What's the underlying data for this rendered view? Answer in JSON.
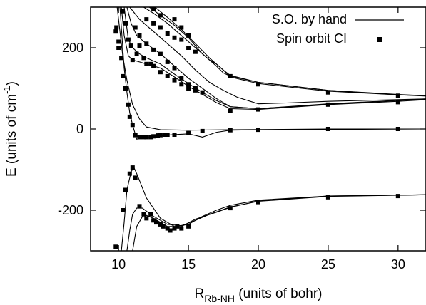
{
  "chart_data": {
    "type": "line",
    "title": "",
    "xlabel": {
      "prefix": "R",
      "subscript": "Rb-NH",
      "suffix": " (units of bohr)"
    },
    "ylabel": {
      "prefix": "E (units of cm",
      "superscript": "-1",
      "suffix": ")"
    },
    "xlim": [
      8,
      32
    ],
    "ylim": [
      -300,
      300
    ],
    "xticks": [
      "10",
      "15",
      "20",
      "25",
      "30"
    ],
    "yticks": [
      "-200",
      "0",
      "200"
    ],
    "xtick_values": [
      10,
      15,
      20,
      25,
      30
    ],
    "ytick_values": [
      -200,
      0,
      200
    ],
    "grid": false,
    "legend": {
      "placement": "top-right",
      "entries": [
        {
          "label": "S.O. by hand",
          "style": "line"
        },
        {
          "label": "Spin orbit CI",
          "style": "square-marker"
        }
      ]
    },
    "line_curves": [
      [
        [
          9.9,
          300
        ],
        [
          10.1,
          240
        ],
        [
          10.3,
          180
        ],
        [
          10.6,
          120
        ],
        [
          11,
          60
        ],
        [
          11.5,
          25
        ],
        [
          12,
          5
        ],
        [
          13,
          -2
        ],
        [
          15,
          -3
        ],
        [
          18,
          -2
        ],
        [
          25,
          0
        ],
        [
          32,
          0
        ]
      ],
      [
        [
          10.1,
          300
        ],
        [
          10.4,
          150
        ],
        [
          10.6,
          90
        ],
        [
          10.8,
          40
        ],
        [
          11,
          10
        ],
        [
          11.3,
          -25
        ],
        [
          11.8,
          -22
        ],
        [
          12.5,
          -20
        ],
        [
          13.5,
          -15
        ],
        [
          15,
          -12
        ],
        [
          16,
          -20
        ],
        [
          17,
          -8
        ],
        [
          18,
          -3
        ],
        [
          20,
          -2
        ],
        [
          32,
          0
        ]
      ],
      [
        [
          10.2,
          300
        ],
        [
          10.4,
          230
        ],
        [
          10.7,
          180
        ],
        [
          11,
          170
        ],
        [
          11.5,
          165
        ],
        [
          12,
          160
        ],
        [
          13,
          150
        ],
        [
          14,
          128
        ],
        [
          15,
          105
        ],
        [
          16,
          85
        ],
        [
          17,
          65
        ],
        [
          18,
          50
        ],
        [
          20,
          48
        ],
        [
          25,
          60
        ],
        [
          30,
          68
        ],
        [
          32,
          72
        ]
      ],
      [
        [
          10.4,
          300
        ],
        [
          10.7,
          220
        ],
        [
          11,
          200
        ],
        [
          11.5,
          185
        ],
        [
          12,
          175
        ],
        [
          13,
          160
        ],
        [
          14,
          135
        ],
        [
          15,
          112
        ],
        [
          16,
          90
        ],
        [
          17,
          70
        ],
        [
          18,
          55
        ],
        [
          20,
          50
        ],
        [
          25,
          61
        ],
        [
          30,
          70
        ],
        [
          32,
          73
        ]
      ],
      [
        [
          10.6,
          300
        ],
        [
          10.9,
          260
        ],
        [
          11.3,
          230
        ],
        [
          12,
          210
        ],
        [
          13,
          185
        ],
        [
          14,
          155
        ],
        [
          15,
          125
        ],
        [
          16,
          100
        ],
        [
          17,
          75
        ],
        [
          18,
          55
        ],
        [
          20,
          50
        ],
        [
          25,
          62
        ],
        [
          32,
          74
        ]
      ],
      [
        [
          10.8,
          300
        ],
        [
          11.5,
          270
        ],
        [
          12.5,
          240
        ],
        [
          13.5,
          210
        ],
        [
          14.5,
          180
        ],
        [
          15.5,
          145
        ],
        [
          16.5,
          115
        ],
        [
          17.5,
          95
        ],
        [
          18.5,
          78
        ],
        [
          20,
          62
        ],
        [
          22,
          64
        ],
        [
          25,
          68
        ],
        [
          32,
          74
        ]
      ],
      [
        [
          11.8,
          300
        ],
        [
          12.5,
          285
        ],
        [
          13.5,
          260
        ],
        [
          14.5,
          230
        ],
        [
          15.5,
          200
        ],
        [
          16.5,
          170
        ],
        [
          17,
          160
        ],
        [
          17.5,
          145
        ],
        [
          18,
          132
        ],
        [
          20,
          115
        ],
        [
          25,
          95
        ],
        [
          30,
          85
        ],
        [
          32,
          82
        ]
      ],
      [
        [
          12.2,
          300
        ],
        [
          13,
          280
        ],
        [
          14,
          255
        ],
        [
          15,
          225
        ],
        [
          16,
          185
        ],
        [
          17,
          155
        ],
        [
          17.5,
          138
        ],
        [
          18,
          130
        ],
        [
          20,
          115
        ],
        [
          25,
          95
        ],
        [
          30,
          84
        ],
        [
          32,
          82
        ]
      ],
      [
        [
          12.6,
          300
        ],
        [
          13.5,
          275
        ],
        [
          14.5,
          245
        ],
        [
          15.5,
          210
        ],
        [
          16.5,
          175
        ],
        [
          17.5,
          145
        ],
        [
          18,
          128
        ],
        [
          20,
          112
        ],
        [
          25,
          93
        ],
        [
          30,
          84
        ],
        [
          32,
          81
        ]
      ],
      [
        [
          10.2,
          -300
        ],
        [
          10.4,
          -230
        ],
        [
          10.6,
          -150
        ],
        [
          10.9,
          -105
        ],
        [
          11.1,
          -95
        ],
        [
          11.3,
          -110
        ],
        [
          12,
          -170
        ],
        [
          13,
          -220
        ],
        [
          14,
          -240
        ],
        [
          15,
          -235
        ],
        [
          16,
          -215
        ],
        [
          17,
          -200
        ],
        [
          18,
          -188
        ],
        [
          20,
          -175
        ],
        [
          25,
          -165
        ],
        [
          32,
          -162
        ]
      ],
      [
        [
          10.6,
          -300
        ],
        [
          10.8,
          -250
        ],
        [
          11,
          -210
        ],
        [
          11.3,
          -195
        ],
        [
          11.7,
          -195
        ],
        [
          12.5,
          -215
        ],
        [
          13.5,
          -235
        ],
        [
          14.5,
          -238
        ],
        [
          15.5,
          -225
        ],
        [
          16.5,
          -210
        ],
        [
          18,
          -192
        ],
        [
          20,
          -178
        ],
        [
          25,
          -166
        ],
        [
          32,
          -162
        ]
      ],
      [
        [
          11,
          -300
        ],
        [
          11.3,
          -240
        ],
        [
          11.8,
          -210
        ],
        [
          12.5,
          -220
        ],
        [
          13.5,
          -240
        ],
        [
          14.5,
          -240
        ],
        [
          15.5,
          -222
        ],
        [
          17,
          -205
        ],
        [
          18,
          -193
        ],
        [
          20,
          -177
        ],
        [
          25,
          -165
        ],
        [
          32,
          -162
        ]
      ]
    ],
    "ci_points": [
      [
        9.8,
        240
      ],
      [
        9.85,
        250
      ],
      [
        10,
        200
      ],
      [
        10,
        215
      ],
      [
        10.2,
        175
      ],
      [
        10.3,
        130
      ],
      [
        10.5,
        100
      ],
      [
        10.7,
        60
      ],
      [
        10.8,
        30
      ],
      [
        11,
        10
      ],
      [
        11.2,
        -15
      ],
      [
        11.5,
        -20
      ],
      [
        11.8,
        -20
      ],
      [
        12,
        -20
      ],
      [
        12.3,
        -20
      ],
      [
        12.5,
        -18
      ],
      [
        12.8,
        -16
      ],
      [
        13,
        -15
      ],
      [
        13.3,
        -14
      ],
      [
        13.5,
        -14
      ],
      [
        14,
        -14
      ],
      [
        15,
        -10
      ],
      [
        16,
        -5
      ],
      [
        18,
        -3
      ],
      [
        20,
        -2
      ],
      [
        25,
        0
      ],
      [
        30,
        0
      ],
      [
        10.3,
        290
      ],
      [
        10.5,
        260
      ],
      [
        10.7,
        220
      ],
      [
        10.9,
        205
      ],
      [
        11,
        170
      ],
      [
        11.3,
        185
      ],
      [
        11.5,
        205
      ],
      [
        11.8,
        175
      ],
      [
        12,
        160
      ],
      [
        12.3,
        160
      ],
      [
        12.5,
        155
      ],
      [
        13,
        140
      ],
      [
        13.5,
        130
      ],
      [
        14,
        120
      ],
      [
        14.5,
        110
      ],
      [
        15,
        100
      ],
      [
        15.5,
        95
      ],
      [
        16,
        90
      ],
      [
        18,
        45
      ],
      [
        20,
        48
      ],
      [
        25,
        60
      ],
      [
        30,
        66
      ],
      [
        11.2,
        250
      ],
      [
        11.5,
        230
      ],
      [
        12,
        210
      ],
      [
        12.5,
        195
      ],
      [
        13,
        185
      ],
      [
        13.5,
        165
      ],
      [
        14,
        150
      ],
      [
        14.5,
        125
      ],
      [
        15,
        110
      ],
      [
        15.5,
        100
      ],
      [
        12,
        270
      ],
      [
        12.5,
        260
      ],
      [
        13,
        250
      ],
      [
        13.5,
        235
      ],
      [
        14,
        225
      ],
      [
        14.5,
        220
      ],
      [
        15,
        200
      ],
      [
        15.5,
        190
      ],
      [
        18,
        130
      ],
      [
        20,
        110
      ],
      [
        25,
        90
      ],
      [
        30,
        82
      ],
      [
        12.5,
        295
      ],
      [
        13,
        280
      ],
      [
        14,
        270
      ],
      [
        14.5,
        250
      ],
      [
        15,
        230
      ],
      [
        9.8,
        -290
      ],
      [
        10.3,
        -200
      ],
      [
        10.5,
        -150
      ],
      [
        10.8,
        -110
      ],
      [
        11,
        -95
      ],
      [
        11.2,
        -120
      ],
      [
        11.5,
        -190
      ],
      [
        11.8,
        -210
      ],
      [
        12,
        -220
      ],
      [
        12.3,
        -210
      ],
      [
        12.5,
        -225
      ],
      [
        12.7,
        -230
      ],
      [
        13,
        -235
      ],
      [
        13.2,
        -240
      ],
      [
        13.5,
        -245
      ],
      [
        13.7,
        -250
      ],
      [
        14,
        -245
      ],
      [
        14.2,
        -240
      ],
      [
        14.5,
        -245
      ],
      [
        15,
        -240
      ],
      [
        18,
        -195
      ],
      [
        20,
        -180
      ],
      [
        25,
        -168
      ],
      [
        30,
        -165
      ]
    ]
  }
}
